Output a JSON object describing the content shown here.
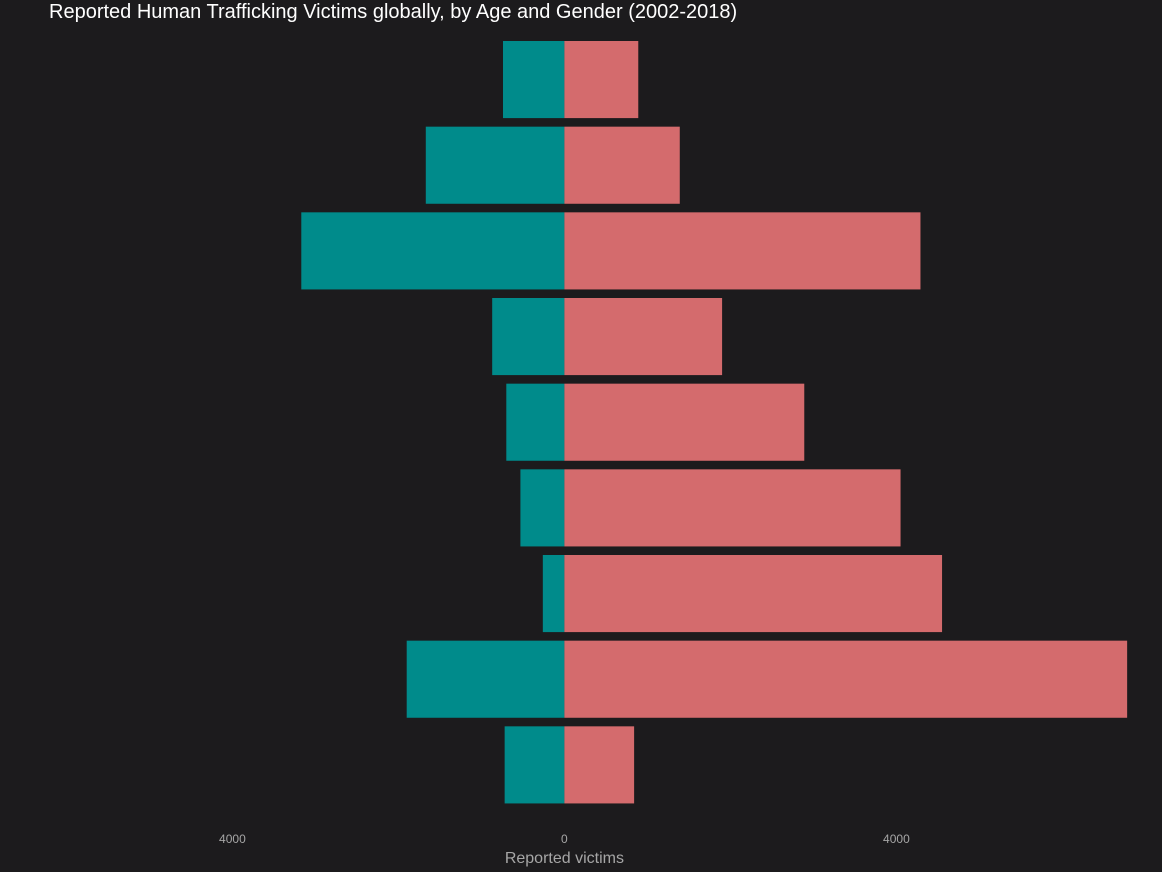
{
  "chart_data": {
    "type": "bar",
    "orientation": "horizontal",
    "diverging": true,
    "title": "Reported Human Trafficking Victims globally, by Age and Gender (2002-2018)",
    "xlabel": "Reported victims",
    "ylabel": "",
    "x_ticks": [
      {
        "value": -4000,
        "label": "4000"
      },
      {
        "value": 0,
        "label": "0"
      },
      {
        "value": 4000,
        "label": "4000"
      }
    ],
    "xlim": [
      -6800,
      7200
    ],
    "grid": false,
    "legend": "none",
    "categories": [
      "",
      "",
      "",
      "",
      "",
      "",
      "",
      "",
      ""
    ],
    "series": [
      {
        "color": "#008b8b",
        "values": [
          -740,
          -1670,
          -3170,
          -870,
          -700,
          -530,
          -260,
          -1900,
          -720
        ]
      },
      {
        "color": "#d46b6d",
        "values": [
          890,
          1390,
          4290,
          1900,
          2890,
          4050,
          4550,
          6780,
          840
        ]
      }
    ]
  }
}
